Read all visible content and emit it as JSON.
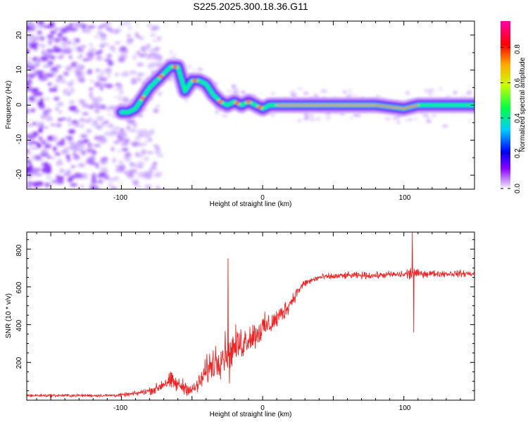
{
  "page_title": "S225.2025.300.18.36.G11",
  "chart_data": [
    {
      "type": "heatmap",
      "title": "S225.2025.300.18.36.G11",
      "xlabel": "Height of straight line (km)",
      "ylabel": "Frequency (Hz)",
      "xlim": [
        -167,
        150
      ],
      "ylim": [
        -24,
        24
      ],
      "xticks": [
        -100,
        0,
        100
      ],
      "yticks": [
        -20,
        -10,
        0,
        10,
        20
      ],
      "xtick_labels": [
        "-100",
        "0",
        "100"
      ],
      "ytick_labels": [
        "-20",
        "-10",
        "0",
        "10",
        "20"
      ],
      "ridge_x": [
        -100,
        -95,
        -90,
        -85,
        -80,
        -75,
        -70,
        -65,
        -60,
        -55,
        -50,
        -45,
        -40,
        -35,
        -30,
        -25,
        -20,
        -15,
        -10,
        -5,
        0,
        5,
        10,
        20,
        40,
        60,
        80,
        100,
        110,
        120,
        150
      ],
      "ridge_freq": [
        -2,
        -2,
        -1,
        2,
        5,
        7,
        9,
        11,
        11,
        4,
        7,
        7,
        6,
        3,
        1,
        0,
        1,
        0,
        1,
        0,
        -1,
        0,
        0,
        0,
        0,
        0,
        0,
        -1,
        0,
        0,
        0
      ],
      "colorbar": {
        "label": "Normalized spectral amplitude",
        "range": [
          0,
          0.95
        ],
        "ticks": [
          0.0,
          0.2,
          0.4,
          0.6,
          0.8
        ],
        "tick_labels": [
          "0.0",
          "0.2",
          "0.4",
          "0.6",
          "0.8"
        ],
        "colors": [
          "#ffffff",
          "#8800ff",
          "#0000ff",
          "#00ffff",
          "#00ff00",
          "#ffff00",
          "#ff8800",
          "#ff0000",
          "#ff00aa"
        ]
      }
    },
    {
      "type": "line",
      "xlabel": "Height of straight line (km)",
      "ylabel": "SNR (10 * v/v)",
      "xlim": [
        -167,
        150
      ],
      "ylim": [
        0,
        890
      ],
      "xticks": [
        -100,
        0,
        100
      ],
      "yticks": [
        200,
        400,
        600,
        800
      ],
      "xtick_labels": [
        "-100",
        "0",
        "100"
      ],
      "ytick_labels": [
        "200",
        "400",
        "600",
        "800"
      ],
      "series": [
        {
          "name": "SNR",
          "color": "#ee2222",
          "x": [
            -167,
            -150,
            -130,
            -110,
            -100,
            -90,
            -80,
            -75,
            -70,
            -65,
            -60,
            -55,
            -50,
            -45,
            -40,
            -35,
            -30,
            -25,
            -20,
            -15,
            -10,
            -5,
            0,
            5,
            10,
            15,
            20,
            25,
            30,
            40,
            50,
            60,
            70,
            80,
            90,
            100,
            105,
            107,
            110,
            120,
            130,
            140,
            150
          ],
          "mean": [
            25,
            25,
            25,
            25,
            27,
            35,
            50,
            60,
            90,
            100,
            80,
            70,
            50,
            90,
            150,
            200,
            230,
            260,
            280,
            300,
            330,
            350,
            380,
            400,
            430,
            470,
            520,
            580,
            620,
            650,
            655,
            660,
            660,
            660,
            665,
            665,
            670,
            670,
            670,
            670,
            670,
            670,
            670
          ],
          "amp": [
            12,
            12,
            12,
            12,
            14,
            18,
            28,
            40,
            60,
            70,
            60,
            55,
            45,
            70,
            110,
            130,
            150,
            150,
            140,
            130,
            110,
            110,
            100,
            90,
            80,
            70,
            60,
            40,
            30,
            25,
            25,
            25,
            25,
            25,
            25,
            30,
            60,
            40,
            30,
            25,
            25,
            25,
            25
          ]
        }
      ],
      "spikes": [
        {
          "x": -24.5,
          "y": 750
        },
        {
          "x": -23.5,
          "y": 90
        },
        {
          "x": 106,
          "y": 890
        },
        {
          "x": 107,
          "y": 360
        }
      ]
    }
  ]
}
